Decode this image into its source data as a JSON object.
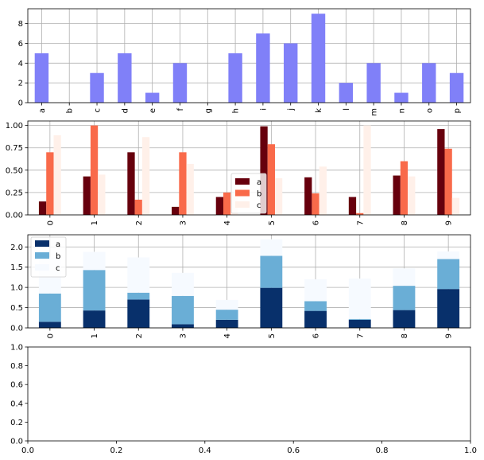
{
  "colors": {
    "chart1_bar": "#8080f8",
    "reds": [
      "#67000d",
      "#f96a4a",
      "#fff0e9"
    ],
    "blues": [
      "#08306b",
      "#6aaed6",
      "#f6faff"
    ],
    "grid": "#b0b0b0",
    "axis": "#000000"
  },
  "chart_data": [
    {
      "type": "bar",
      "categories": [
        "a",
        "b",
        "c",
        "d",
        "e",
        "f",
        "g",
        "h",
        "i",
        "j",
        "k",
        "l",
        "m",
        "n",
        "o",
        "p"
      ],
      "values": [
        5,
        0,
        3,
        5,
        1,
        4,
        0,
        5,
        7,
        6,
        9,
        2,
        4,
        1,
        4,
        3
      ],
      "ylim": [
        0,
        9.5
      ],
      "yticks": [
        "0",
        "2",
        "4",
        "6",
        "8"
      ],
      "grid": true,
      "xtick_rotation": 90
    },
    {
      "type": "bar",
      "categories": [
        "0",
        "1",
        "2",
        "3",
        "4",
        "5",
        "6",
        "7",
        "8",
        "9"
      ],
      "series": [
        {
          "name": "a",
          "values": [
            0.15,
            0.43,
            0.7,
            0.09,
            0.2,
            0.99,
            0.42,
            0.2,
            0.44,
            0.96
          ]
        },
        {
          "name": "b",
          "values": [
            0.7,
            1.0,
            0.17,
            0.7,
            0.25,
            0.79,
            0.24,
            0.02,
            0.6,
            0.74
          ]
        },
        {
          "name": "c",
          "values": [
            0.89,
            0.45,
            0.87,
            0.57,
            0.24,
            0.41,
            0.54,
            1.0,
            0.43,
            0.19
          ]
        }
      ],
      "ylim": [
        0,
        1.05
      ],
      "yticks": [
        "0.00",
        "0.25",
        "0.50",
        "0.75",
        "1.00"
      ],
      "grid": true,
      "legend": "center",
      "xtick_rotation": 90
    },
    {
      "type": "bar",
      "stacked": true,
      "categories": [
        "0",
        "1",
        "2",
        "3",
        "4",
        "5",
        "6",
        "7",
        "8",
        "9"
      ],
      "series": [
        {
          "name": "a",
          "values": [
            0.15,
            0.43,
            0.7,
            0.09,
            0.2,
            0.99,
            0.42,
            0.2,
            0.44,
            0.96
          ]
        },
        {
          "name": "b",
          "values": [
            0.7,
            1.0,
            0.17,
            0.7,
            0.25,
            0.79,
            0.24,
            0.02,
            0.6,
            0.74
          ]
        },
        {
          "name": "c",
          "values": [
            0.89,
            0.45,
            0.87,
            0.57,
            0.24,
            0.41,
            0.54,
            1.0,
            0.43,
            0.19
          ]
        }
      ],
      "ylim": [
        0,
        2.3
      ],
      "yticks": [
        "0.0",
        "0.5",
        "1.0",
        "1.5",
        "2.0"
      ],
      "grid": true,
      "legend": "top-left",
      "xtick_rotation": 90
    },
    {
      "type": "line",
      "series": [],
      "xlim": [
        0,
        1
      ],
      "ylim": [
        0,
        1
      ],
      "xticks": [
        "0.0",
        "0.2",
        "0.4",
        "0.6",
        "0.8",
        "1.0"
      ],
      "yticks": [
        "0.0",
        "0.2",
        "0.4",
        "0.6",
        "0.8",
        "1.0"
      ],
      "grid": false
    }
  ]
}
